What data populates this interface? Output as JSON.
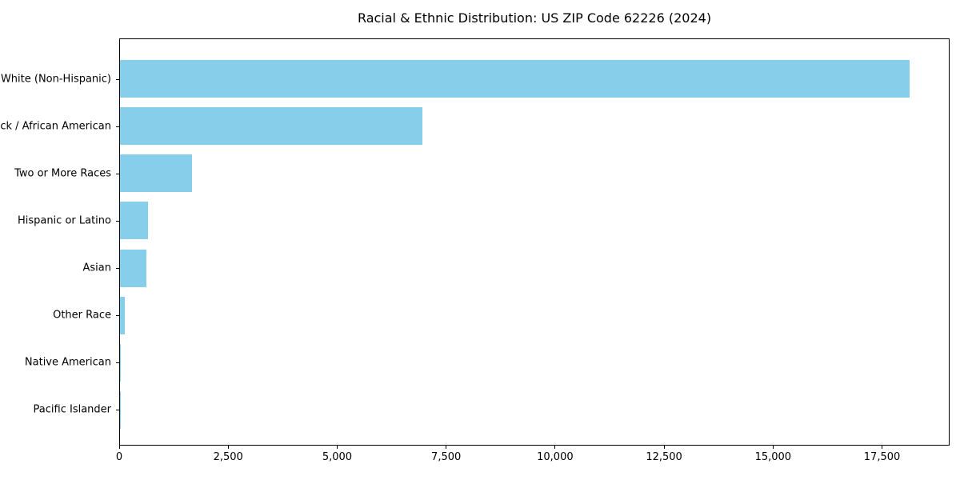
{
  "chart_data": {
    "type": "bar",
    "orientation": "horizontal",
    "title": "Racial & Ethnic Distribution: US ZIP Code 62226 (2024)",
    "categories": [
      "White (Non-Hispanic)",
      "Black / African American",
      "Two or More Races",
      "Hispanic or Latino",
      "Asian",
      "Other Race",
      "Native American",
      "Pacific Islander"
    ],
    "values": [
      18150,
      6950,
      1650,
      640,
      600,
      110,
      10,
      5
    ],
    "bar_color": "#87CEEB",
    "xlabel": "",
    "ylabel": "",
    "xlim": [
      0,
      19050
    ],
    "x_ticks": [
      0,
      2500,
      5000,
      7500,
      10000,
      12500,
      15000,
      17500
    ],
    "x_tick_labels": [
      "0",
      "2,500",
      "5,000",
      "7,500",
      "10,000",
      "12,500",
      "15,000",
      "17,500"
    ],
    "grid": false,
    "legend": "none"
  }
}
